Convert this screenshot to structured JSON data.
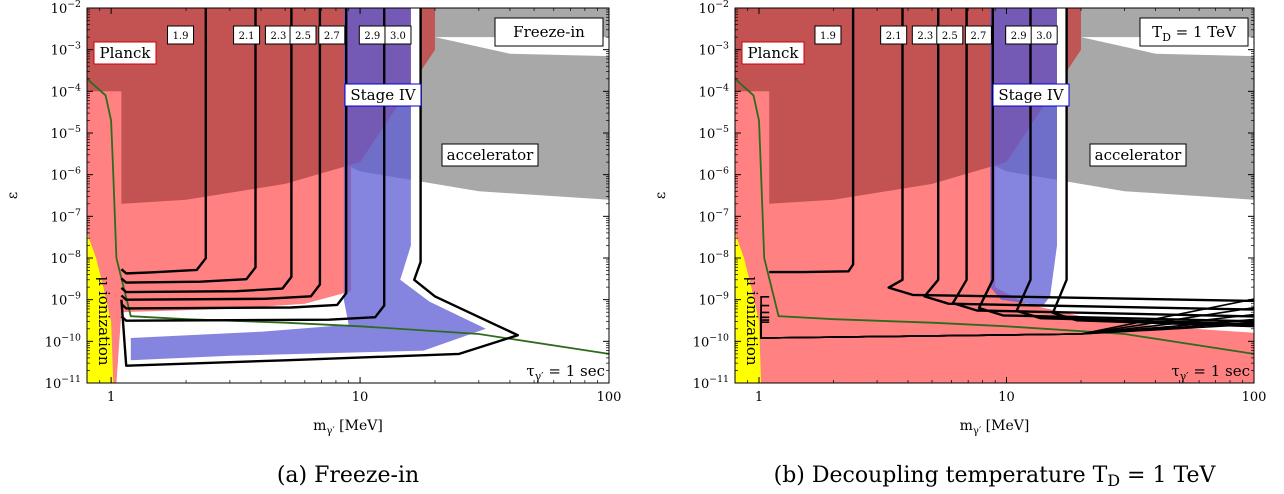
{
  "chart_data": [
    {
      "type": "line",
      "caption": "(a) Freeze-in",
      "corner_label": "Freeze-in",
      "xlabel": "m_{γ′} [MeV]",
      "ylabel": "ε",
      "x_scale": "log",
      "y_scale": "log",
      "xlim": [
        0.8,
        100
      ],
      "ylim": [
        1e-11,
        0.01
      ],
      "x_ticks": [
        1,
        10,
        100
      ],
      "x_tick_labels": [
        "1",
        "10",
        "100"
      ],
      "y_ticks": [
        1e-11,
        1e-10,
        1e-09,
        1e-08,
        1e-07,
        1e-06,
        1e-05,
        0.0001,
        0.001,
        0.01
      ],
      "y_tick_labels": [
        "10^-11",
        "10^-10",
        "10^-9",
        "10^-8",
        "10^-7",
        "10^-6",
        "10^-5",
        "10^-4",
        "10^-3",
        "10^-2"
      ],
      "regions": [
        {
          "name": "Planck",
          "color": "#c05050"
        },
        {
          "name": "Stage IV",
          "color": "#5c5cd6"
        },
        {
          "name": "accelerator",
          "color": "#9e9e9e"
        },
        {
          "name": "μ ionization",
          "color": "#ffff00"
        }
      ],
      "lifetime_label": "τ_{γ′} = 1 sec",
      "lifetime_color": "#2e6b1e",
      "lifetime_curve": {
        "x": [
          0.8,
          0.95,
          1.0,
          1.02,
          1.05,
          1.2,
          2,
          5,
          10,
          30,
          100
        ],
        "y": [
          0.0002,
          8e-05,
          2e-05,
          1e-06,
          1e-08,
          4e-10,
          3.4e-10,
          2.8e-10,
          2.3e-10,
          1.5e-10,
          5e-11
        ]
      },
      "contours": [
        {
          "label": "1.9",
          "x_top": 2.4,
          "y_floor": 4.5e-09
        },
        {
          "label": "2.1",
          "x_top": 3.8,
          "y_floor": 2.7e-09
        },
        {
          "label": "2.3",
          "x_top": 5.3,
          "y_floor": 1.6e-09
        },
        {
          "label": "2.5",
          "x_top": 6.9,
          "y_floor": 1.05e-09
        },
        {
          "label": "2.7",
          "x_top": 8.8,
          "y_floor": 6.5e-10
        },
        {
          "label": "2.9",
          "x_top": 12.5,
          "y_floor": 3.3e-10
        },
        {
          "label": "3.0",
          "x_top": 17.5,
          "y_floor": 2.6e-11
        }
      ]
    },
    {
      "type": "line",
      "caption": "(b) Decoupling temperature T_D = 1 TeV",
      "corner_label": "T_D = 1 TeV",
      "xlabel": "m_{γ′} [MeV]",
      "ylabel": "ε",
      "x_scale": "log",
      "y_scale": "log",
      "xlim": [
        0.8,
        100
      ],
      "ylim": [
        1e-11,
        0.01
      ],
      "x_ticks": [
        1,
        10,
        100
      ],
      "x_tick_labels": [
        "1",
        "10",
        "100"
      ],
      "y_ticks": [
        1e-11,
        1e-10,
        1e-09,
        1e-08,
        1e-07,
        1e-06,
        1e-05,
        0.0001,
        0.001,
        0.01
      ],
      "y_tick_labels": [
        "10^-11",
        "10^-10",
        "10^-9",
        "10^-8",
        "10^-7",
        "10^-6",
        "10^-5",
        "10^-4",
        "10^-3",
        "10^-2"
      ],
      "regions": [
        {
          "name": "Planck",
          "color": "#c05050"
        },
        {
          "name": "Stage IV",
          "color": "#5c5cd6"
        },
        {
          "name": "accelerator",
          "color": "#9e9e9e"
        },
        {
          "name": "μ ionization",
          "color": "#ffff00"
        }
      ],
      "lifetime_label": "τ_{γ′} = 1 sec",
      "lifetime_color": "#2e6b1e",
      "lifetime_curve": {
        "x": [
          0.8,
          0.95,
          1.0,
          1.02,
          1.05,
          1.2,
          2,
          5,
          10,
          30,
          100
        ],
        "y": [
          0.0002,
          8e-05,
          2e-05,
          1e-06,
          1e-08,
          4e-10,
          3.4e-10,
          2.8e-10,
          2.3e-10,
          1.5e-10,
          5e-11
        ]
      },
      "contours": [
        {
          "label": "1.9",
          "x_top": 2.4,
          "y_floor": 4.5e-09
        },
        {
          "label": "2.1",
          "x_top": 3.8,
          "y_floor": 1.3e-09
        },
        {
          "label": "2.3",
          "x_top": 5.3,
          "y_floor": 8e-10
        },
        {
          "label": "2.5",
          "x_top": 6.9,
          "y_floor": 5.5e-10
        },
        {
          "label": "2.7",
          "x_top": 8.8,
          "y_floor": 4.2e-10
        },
        {
          "label": "2.9",
          "x_top": 12.5,
          "y_floor": 3.6e-10
        },
        {
          "label": "3.0",
          "x_top": 17.5,
          "y_floor": 3.2e-10
        }
      ]
    }
  ]
}
